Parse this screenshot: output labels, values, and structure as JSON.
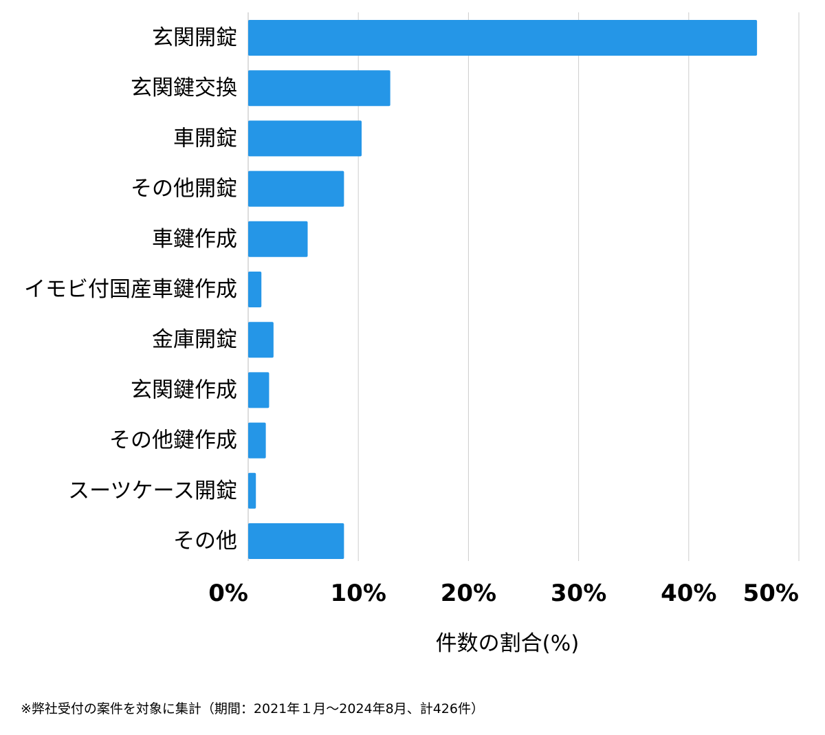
{
  "chart_data": {
    "type": "bar",
    "orientation": "horizontal",
    "categories": [
      "玄関開錠",
      "玄関鍵交換",
      "車開錠",
      "その他開錠",
      "車鍵作成",
      "イモビ付国産車鍵作成",
      "金庫開錠",
      "玄関鍵作成",
      "その他鍵作成",
      "スーツケース開錠",
      "その他"
    ],
    "values": [
      46.2,
      12.9,
      10.3,
      8.7,
      5.4,
      1.2,
      2.3,
      1.9,
      1.6,
      0.7,
      8.7
    ],
    "xlabel": "件数の割合(%)",
    "ylabel": "",
    "xlim": [
      0,
      50
    ],
    "xticks": [
      0,
      10,
      20,
      30,
      40,
      50
    ],
    "xtick_labels": [
      "0%",
      "10%",
      "20%",
      "30%",
      "40%",
      "50%"
    ],
    "grid": "vertical",
    "legend": "none",
    "colors": {
      "bar": "#2596e7",
      "grid": "#cccccc"
    }
  },
  "footnote": "※弊社受付の案件を対象に集計（期間：2021年１月～2024年8月、計426件）"
}
